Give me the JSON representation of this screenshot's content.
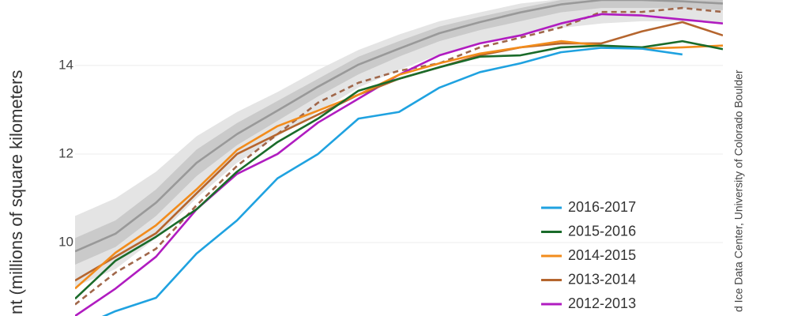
{
  "chart_data": {
    "type": "line",
    "y_label": "nt (millions of square kilometers",
    "credit": "d Ice Data Center, University of Colorado Boulder",
    "categories": [
      null,
      null,
      null,
      null,
      null,
      null,
      null,
      null,
      null,
      null,
      null,
      null,
      null,
      null,
      null,
      null,
      null
    ],
    "ylim": [
      8.34,
      15.48
    ],
    "yticks": [
      10,
      12,
      14
    ],
    "grid": true,
    "legend": "lower right",
    "bands": [
      {
        "color": "#e4e4e4",
        "upper": [
          10.6,
          11.0,
          11.6,
          12.4,
          12.95,
          13.4,
          13.9,
          14.35,
          14.7,
          15.0,
          15.2,
          15.4,
          15.5,
          15.5,
          15.5,
          15.5,
          15.5
        ],
        "lower": [
          9.0,
          9.4,
          10.1,
          11.0,
          11.8,
          12.4,
          12.95,
          13.5,
          13.9,
          14.25,
          14.5,
          14.7,
          14.85,
          14.95,
          15.0,
          15.0,
          14.95
        ]
      },
      {
        "color": "#cacaca",
        "upper": [
          10.1,
          10.5,
          11.2,
          12.1,
          12.7,
          13.2,
          13.7,
          14.2,
          14.55,
          14.88,
          15.1,
          15.3,
          15.48,
          15.55,
          15.55,
          15.55,
          15.5
        ],
        "lower": [
          9.5,
          9.9,
          10.6,
          11.5,
          12.2,
          12.75,
          13.3,
          13.8,
          14.2,
          14.55,
          14.8,
          15.0,
          15.2,
          15.3,
          15.3,
          15.3,
          15.25
        ]
      }
    ],
    "series": [
      {
        "color": "#999999",
        "values": [
          9.8,
          10.2,
          10.9,
          11.8,
          12.45,
          12.98,
          13.52,
          14.02,
          14.38,
          14.73,
          14.98,
          15.2,
          15.38,
          15.48,
          15.48,
          15.45,
          15.4
        ]
      },
      {
        "color": "#a0674a",
        "dash": true,
        "values": [
          8.6,
          9.32,
          9.86,
          10.84,
          11.73,
          12.45,
          13.16,
          13.61,
          13.88,
          14.05,
          14.41,
          14.63,
          14.86,
          15.21,
          15.21,
          15.3,
          15.21
        ]
      },
      {
        "name": "2012-2013",
        "color": "#b01cc0",
        "values": [
          8.34,
          8.96,
          9.68,
          10.75,
          11.55,
          12.0,
          12.71,
          13.25,
          13.79,
          14.23,
          14.5,
          14.68,
          14.95,
          15.16,
          15.13,
          15.04,
          14.95
        ]
      },
      {
        "name": "2013-2014",
        "color": "#b5652e",
        "values": [
          9.14,
          9.68,
          10.21,
          11.11,
          12.0,
          12.45,
          12.89,
          13.34,
          13.7,
          13.96,
          14.23,
          14.41,
          14.5,
          14.5,
          14.77,
          14.98,
          14.68
        ]
      },
      {
        "name": "2014-2015",
        "color": "#f28c1c",
        "values": [
          8.96,
          9.77,
          10.39,
          11.2,
          12.09,
          12.63,
          12.98,
          13.34,
          13.79,
          14.05,
          14.27,
          14.41,
          14.55,
          14.45,
          14.38,
          14.41,
          14.45
        ]
      },
      {
        "name": "2015-2016",
        "color": "#1a6b2a",
        "values": [
          8.73,
          9.59,
          10.13,
          10.75,
          11.6,
          12.27,
          12.8,
          13.43,
          13.7,
          13.96,
          14.2,
          14.23,
          14.41,
          14.45,
          14.41,
          14.55,
          14.37
        ]
      },
      {
        "name": "2016-2017",
        "color": "#1fa2e0",
        "values": [
          8.05,
          8.45,
          8.75,
          9.75,
          10.5,
          11.45,
          12.0,
          12.8,
          12.95,
          13.5,
          13.85,
          14.05,
          14.3,
          14.4,
          14.38,
          14.25,
          null
        ]
      }
    ]
  }
}
